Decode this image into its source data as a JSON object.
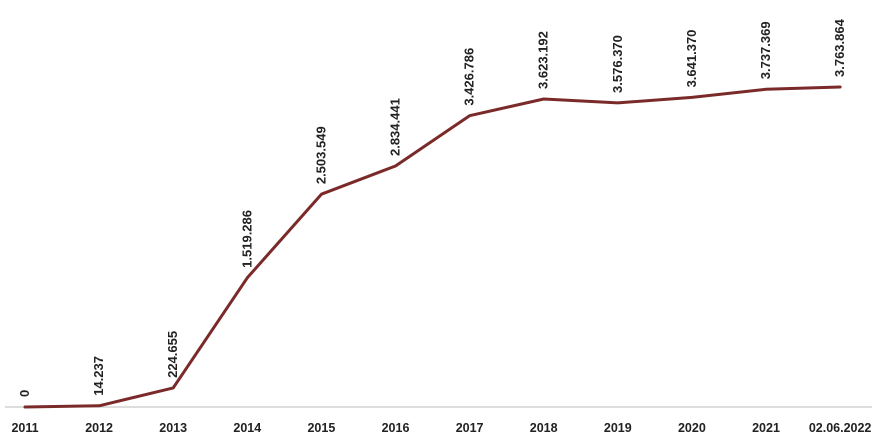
{
  "chart_data": {
    "type": "line",
    "title": "",
    "xlabel": "",
    "ylabel": "",
    "categories": [
      "2011",
      "2012",
      "2013",
      "2014",
      "2015",
      "2016",
      "2017",
      "2018",
      "2019",
      "2020",
      "2021",
      "02.06.2022"
    ],
    "series": [
      {
        "values": [
          0,
          14237,
          224655,
          1519286,
          2503549,
          2834441,
          3426786,
          3623192,
          3576370,
          3641370,
          3737369,
          3763864
        ],
        "labels": [
          "0",
          "14.237",
          "224.655",
          "1.519.286",
          "2.503.549",
          "2.834.441",
          "3.426.786",
          "3.623.192",
          "3.576.370",
          "3.641.370",
          "3.737.369",
          "3.763.864"
        ],
        "color": "#7b2a2a"
      }
    ],
    "ylim": [
      0,
      3763864
    ],
    "grid": false,
    "legend": "none"
  }
}
